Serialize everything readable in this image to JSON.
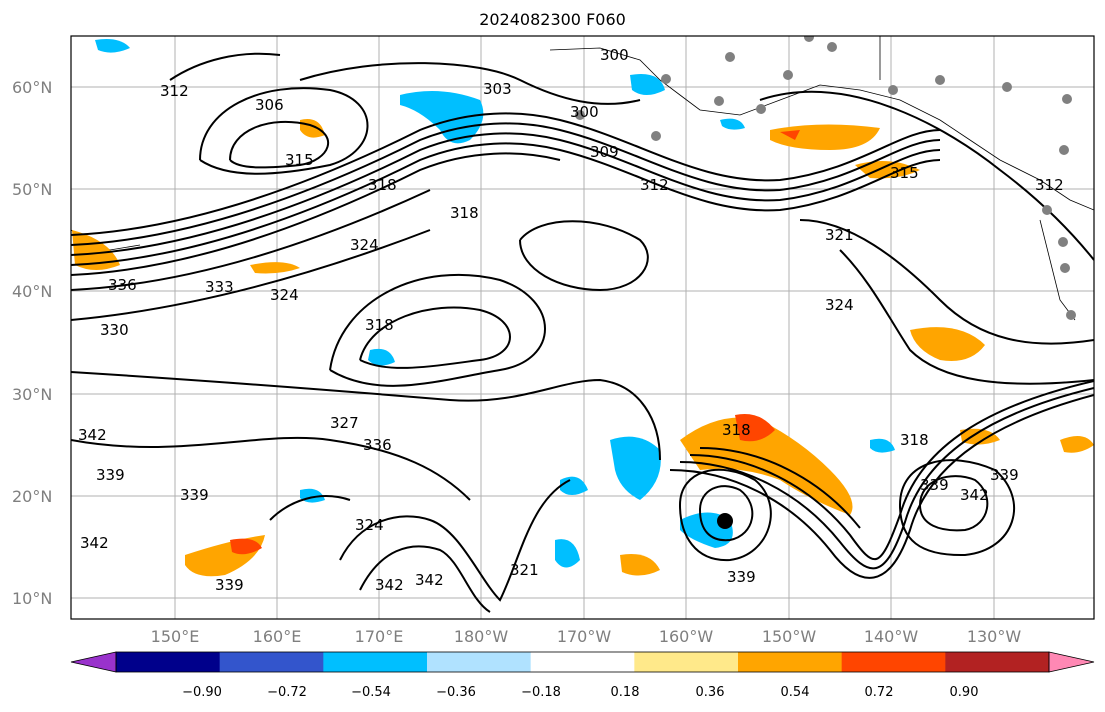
{
  "title": "2024082300 F060",
  "latitude_labels": [
    "10°N",
    "20°N",
    "30°N",
    "40°N",
    "50°N",
    "60°N"
  ],
  "longitude_labels": [
    "150°E",
    "160°E",
    "170°E",
    "180°W",
    "170°W",
    "160°W",
    "150°W",
    "140°W",
    "130°W"
  ],
  "colorbar": {
    "tick_labels": [
      "−0.90",
      "−0.72",
      "−0.54",
      "−0.36",
      "−0.18",
      "0.18",
      "0.36",
      "0.54",
      "0.72",
      "0.90"
    ],
    "colors": [
      "#9932cc",
      "#00008b",
      "#3355cc",
      "#00bfff",
      "#b0e2ff",
      "#ffffff",
      "#ffe98a",
      "#ffa500",
      "#ff4500",
      "#b22222",
      "#ff88b4"
    ]
  },
  "contour_labels": [
    "300",
    "303",
    "306",
    "309",
    "312",
    "315",
    "318",
    "321",
    "324",
    "327",
    "330",
    "333",
    "336",
    "339",
    "342"
  ],
  "colors": {
    "positive_fill": "#ffa500",
    "negative_fill": "#00bfff",
    "contour": "#000000",
    "coast": "#000000",
    "grid": "#b0b0b0",
    "stations": "#808080"
  }
}
